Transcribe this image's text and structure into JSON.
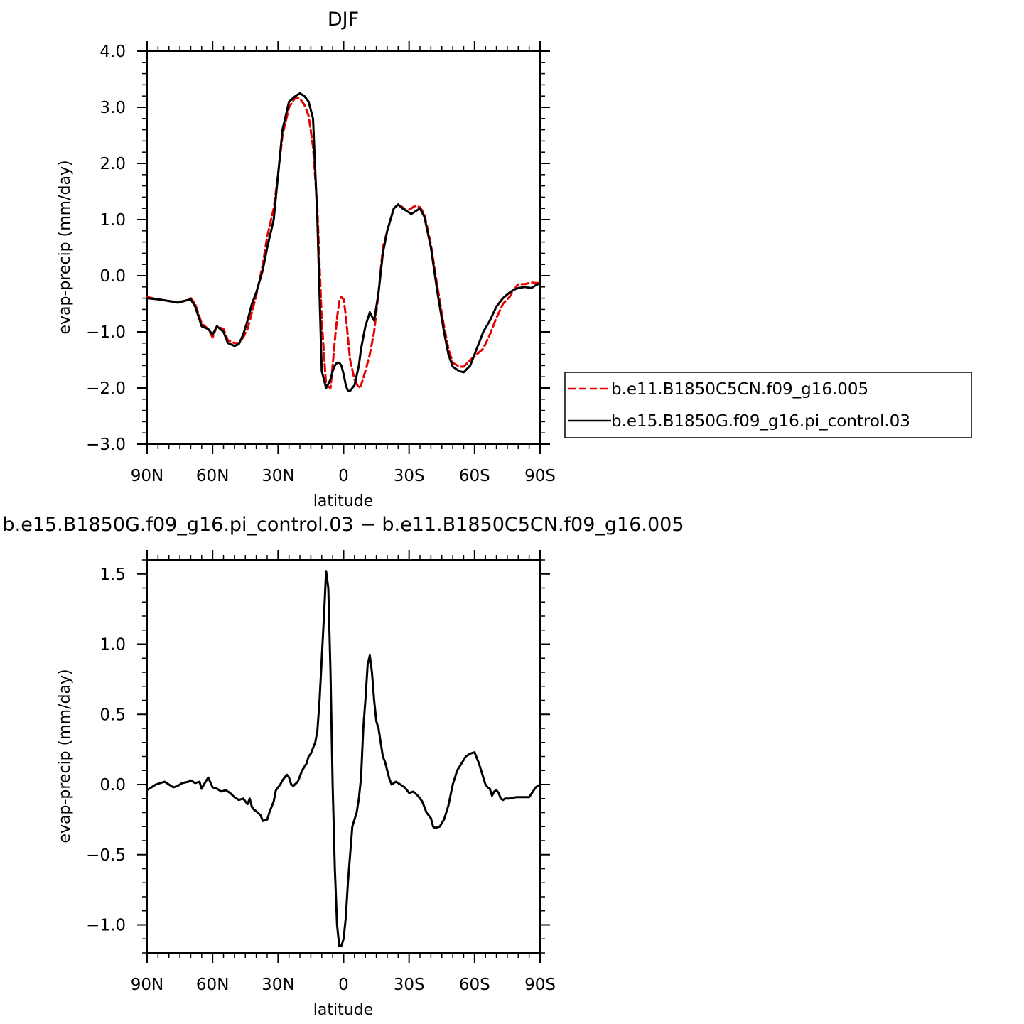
{
  "chart_data": [
    {
      "type": "line",
      "title": "DJF",
      "xlabel": "latitude",
      "ylabel": "evap-precip (mm/day)",
      "xlim": [
        90,
        -90
      ],
      "ylim": [
        -3,
        4
      ],
      "x_ticks": [
        {
          "value": 90,
          "label": "90N"
        },
        {
          "value": 60,
          "label": "60N"
        },
        {
          "value": 30,
          "label": "30N"
        },
        {
          "value": 0,
          "label": "0"
        },
        {
          "value": -30,
          "label": "30S"
        },
        {
          "value": -60,
          "label": "60S"
        },
        {
          "value": -90,
          "label": "90S"
        }
      ],
      "y_ticks": [
        {
          "value": 4,
          "label": "4.0"
        },
        {
          "value": 3,
          "label": "3.0"
        },
        {
          "value": 2,
          "label": "2.0"
        },
        {
          "value": 1,
          "label": "1.0"
        },
        {
          "value": 0,
          "label": "0.0"
        },
        {
          "value": -1,
          "label": "−1.0"
        },
        {
          "value": -2,
          "label": "−2.0"
        },
        {
          "value": -3,
          "label": "−3.0"
        }
      ],
      "legend_position": "right",
      "series": [
        {
          "name": "b.e11.B1850C5CN.f09_g16.005",
          "color": "#e60000",
          "dash": "dashed",
          "x": [
            90,
            85,
            80,
            76,
            73,
            70,
            68,
            65,
            62,
            60,
            58,
            55,
            53,
            50,
            48,
            46,
            44,
            42,
            40,
            37,
            35,
            32,
            30,
            28,
            25,
            22,
            20,
            18,
            16,
            14,
            12,
            10,
            8,
            6,
            5,
            4,
            3,
            2,
            1,
            0,
            -1,
            -2,
            -3,
            -5,
            -7,
            -8,
            -10,
            -12,
            -14,
            -16,
            -18,
            -20,
            -23,
            -25,
            -27,
            -29,
            -31,
            -33,
            -35,
            -37,
            -40,
            -43,
            -46,
            -48,
            -50,
            -53,
            -55,
            -58,
            -61,
            -64,
            -67,
            -70,
            -73,
            -76,
            -78,
            -80,
            -83,
            -86,
            -88,
            -90
          ],
          "y": [
            -0.38,
            -0.42,
            -0.45,
            -0.47,
            -0.45,
            -0.4,
            -0.5,
            -0.85,
            -0.95,
            -1.1,
            -0.9,
            -0.95,
            -1.15,
            -1.2,
            -1.2,
            -1.1,
            -0.95,
            -0.65,
            -0.35,
            0.2,
            0.7,
            1.2,
            1.8,
            2.5,
            3.0,
            3.18,
            3.15,
            3.05,
            2.85,
            2.3,
            1.2,
            -0.8,
            -1.95,
            -2.0,
            -1.6,
            -1.15,
            -0.75,
            -0.45,
            -0.38,
            -0.42,
            -0.7,
            -1.1,
            -1.5,
            -1.85,
            -2.0,
            -1.95,
            -1.7,
            -1.4,
            -1.0,
            -0.3,
            0.5,
            0.8,
            1.2,
            1.27,
            1.22,
            1.15,
            1.2,
            1.25,
            1.22,
            1.1,
            0.55,
            -0.2,
            -0.9,
            -1.3,
            -1.55,
            -1.62,
            -1.62,
            -1.5,
            -1.4,
            -1.3,
            -1.05,
            -0.75,
            -0.5,
            -0.38,
            -0.25,
            -0.15,
            -0.15,
            -0.12,
            -0.13,
            -0.13
          ]
        },
        {
          "name": "b.e15.B1850G.f09_g16.pi_control.03",
          "color": "#000000",
          "dash": "solid",
          "x": [
            90,
            85,
            80,
            76,
            73,
            70,
            68,
            65,
            62,
            60,
            58,
            55,
            53,
            50,
            48,
            46,
            44,
            42,
            40,
            37,
            35,
            32,
            30,
            28,
            25,
            22,
            20,
            18,
            16,
            14,
            12,
            10,
            8,
            6,
            5,
            4,
            3,
            2,
            1,
            0,
            -1,
            -2,
            -3,
            -5,
            -7,
            -8,
            -10,
            -12,
            -14,
            -16,
            -18,
            -20,
            -23,
            -25,
            -27,
            -29,
            -31,
            -33,
            -35,
            -37,
            -40,
            -43,
            -46,
            -48,
            -50,
            -53,
            -55,
            -58,
            -61,
            -64,
            -67,
            -70,
            -73,
            -76,
            -78,
            -80,
            -83,
            -86,
            -88,
            -90
          ],
          "y": [
            -0.4,
            -0.42,
            -0.45,
            -0.48,
            -0.45,
            -0.42,
            -0.55,
            -0.9,
            -0.95,
            -1.05,
            -0.9,
            -1.0,
            -1.2,
            -1.25,
            -1.22,
            -1.05,
            -0.8,
            -0.5,
            -0.3,
            0.1,
            0.5,
            1.0,
            1.8,
            2.6,
            3.1,
            3.2,
            3.25,
            3.2,
            3.1,
            2.8,
            1.0,
            -1.7,
            -2.0,
            -1.85,
            -1.7,
            -1.6,
            -1.55,
            -1.55,
            -1.6,
            -1.75,
            -1.95,
            -2.05,
            -2.05,
            -1.95,
            -1.6,
            -1.3,
            -0.9,
            -0.65,
            -0.8,
            -0.3,
            0.4,
            0.8,
            1.2,
            1.27,
            1.2,
            1.15,
            1.1,
            1.15,
            1.2,
            1.05,
            0.5,
            -0.3,
            -1.0,
            -1.4,
            -1.62,
            -1.7,
            -1.72,
            -1.6,
            -1.3,
            -1.0,
            -0.8,
            -0.55,
            -0.4,
            -0.3,
            -0.25,
            -0.22,
            -0.2,
            -0.22,
            -0.17,
            -0.13
          ]
        }
      ]
    },
    {
      "type": "line",
      "title": "b.e15.B1850G.f09_g16.pi_control.03 − b.e11.B1850C5CN.f09_g16.005",
      "xlabel": "latitude",
      "ylabel": "evap-precip (mm/day)",
      "xlim": [
        90,
        -90
      ],
      "ylim": [
        -1.2,
        1.6
      ],
      "x_ticks": [
        {
          "value": 90,
          "label": "90N"
        },
        {
          "value": 60,
          "label": "60N"
        },
        {
          "value": 30,
          "label": "30N"
        },
        {
          "value": 0,
          "label": "0"
        },
        {
          "value": -30,
          "label": "30S"
        },
        {
          "value": -60,
          "label": "60S"
        },
        {
          "value": -90,
          "label": "90S"
        }
      ],
      "y_ticks": [
        {
          "value": 1.5,
          "label": "1.5"
        },
        {
          "value": 1.0,
          "label": "1.0"
        },
        {
          "value": 0.5,
          "label": "0.5"
        },
        {
          "value": 0.0,
          "label": "0.0"
        },
        {
          "value": -0.5,
          "label": "−0.5"
        },
        {
          "value": -1.0,
          "label": "−1.0"
        }
      ],
      "series": [
        {
          "color": "#000000",
          "dash": "solid",
          "x": [
            90,
            86,
            82,
            78,
            76,
            74,
            71,
            70,
            68,
            66,
            65,
            64,
            62,
            60,
            58,
            56,
            54,
            52,
            50,
            48,
            46,
            44,
            43,
            42,
            41,
            40,
            38,
            37,
            35,
            34,
            32,
            31,
            29,
            28,
            26,
            25,
            24,
            23,
            21,
            20,
            19,
            17,
            16,
            15,
            13,
            12,
            11,
            10,
            9,
            8,
            7,
            6,
            5,
            4,
            3,
            2,
            1,
            0,
            -1,
            -2,
            -3,
            -4,
            -6,
            -7,
            -8,
            -9,
            -10,
            -11,
            -12,
            -13,
            -14,
            -15,
            -16,
            -17,
            -18,
            -19,
            -20,
            -21,
            -22,
            -24,
            -26,
            -28,
            -30,
            -32,
            -34,
            -36,
            -38,
            -40,
            -41,
            -42,
            -44,
            -46,
            -48,
            -50,
            -52,
            -54,
            -56,
            -58,
            -60,
            -62,
            -64,
            -65,
            -66,
            -67,
            -68,
            -69,
            -70,
            -71,
            -72,
            -73,
            -74,
            -76,
            -79,
            -82,
            -85,
            -88,
            -90
          ],
          "y": [
            -0.04,
            0.0,
            0.02,
            -0.02,
            -0.01,
            0.01,
            0.02,
            0.03,
            0.01,
            0.02,
            -0.03,
            0.0,
            0.05,
            -0.02,
            -0.03,
            -0.05,
            -0.04,
            -0.06,
            -0.09,
            -0.11,
            -0.1,
            -0.14,
            -0.1,
            -0.16,
            -0.18,
            -0.19,
            -0.22,
            -0.26,
            -0.25,
            -0.2,
            -0.12,
            -0.04,
            0.0,
            0.03,
            0.07,
            0.05,
            0.0,
            -0.01,
            0.02,
            0.06,
            0.1,
            0.15,
            0.2,
            0.22,
            0.3,
            0.38,
            0.6,
            0.9,
            1.2,
            1.52,
            1.4,
            0.8,
            0.0,
            -0.6,
            -1.0,
            -1.15,
            -1.15,
            -1.1,
            -0.95,
            -0.7,
            -0.5,
            -0.3,
            -0.2,
            -0.1,
            0.05,
            0.4,
            0.6,
            0.85,
            0.92,
            0.8,
            0.6,
            0.45,
            0.4,
            0.3,
            0.2,
            0.16,
            0.1,
            0.04,
            0.0,
            0.02,
            0.0,
            -0.02,
            -0.06,
            -0.05,
            -0.08,
            -0.12,
            -0.2,
            -0.24,
            -0.3,
            -0.31,
            -0.3,
            -0.25,
            -0.15,
            0.0,
            0.1,
            0.15,
            0.2,
            0.22,
            0.23,
            0.15,
            0.05,
            0.0,
            -0.02,
            -0.03,
            -0.08,
            -0.05,
            -0.04,
            -0.06,
            -0.1,
            -0.11,
            -0.1,
            -0.1,
            -0.09,
            -0.09,
            -0.09,
            -0.02,
            0.0
          ]
        }
      ]
    }
  ]
}
